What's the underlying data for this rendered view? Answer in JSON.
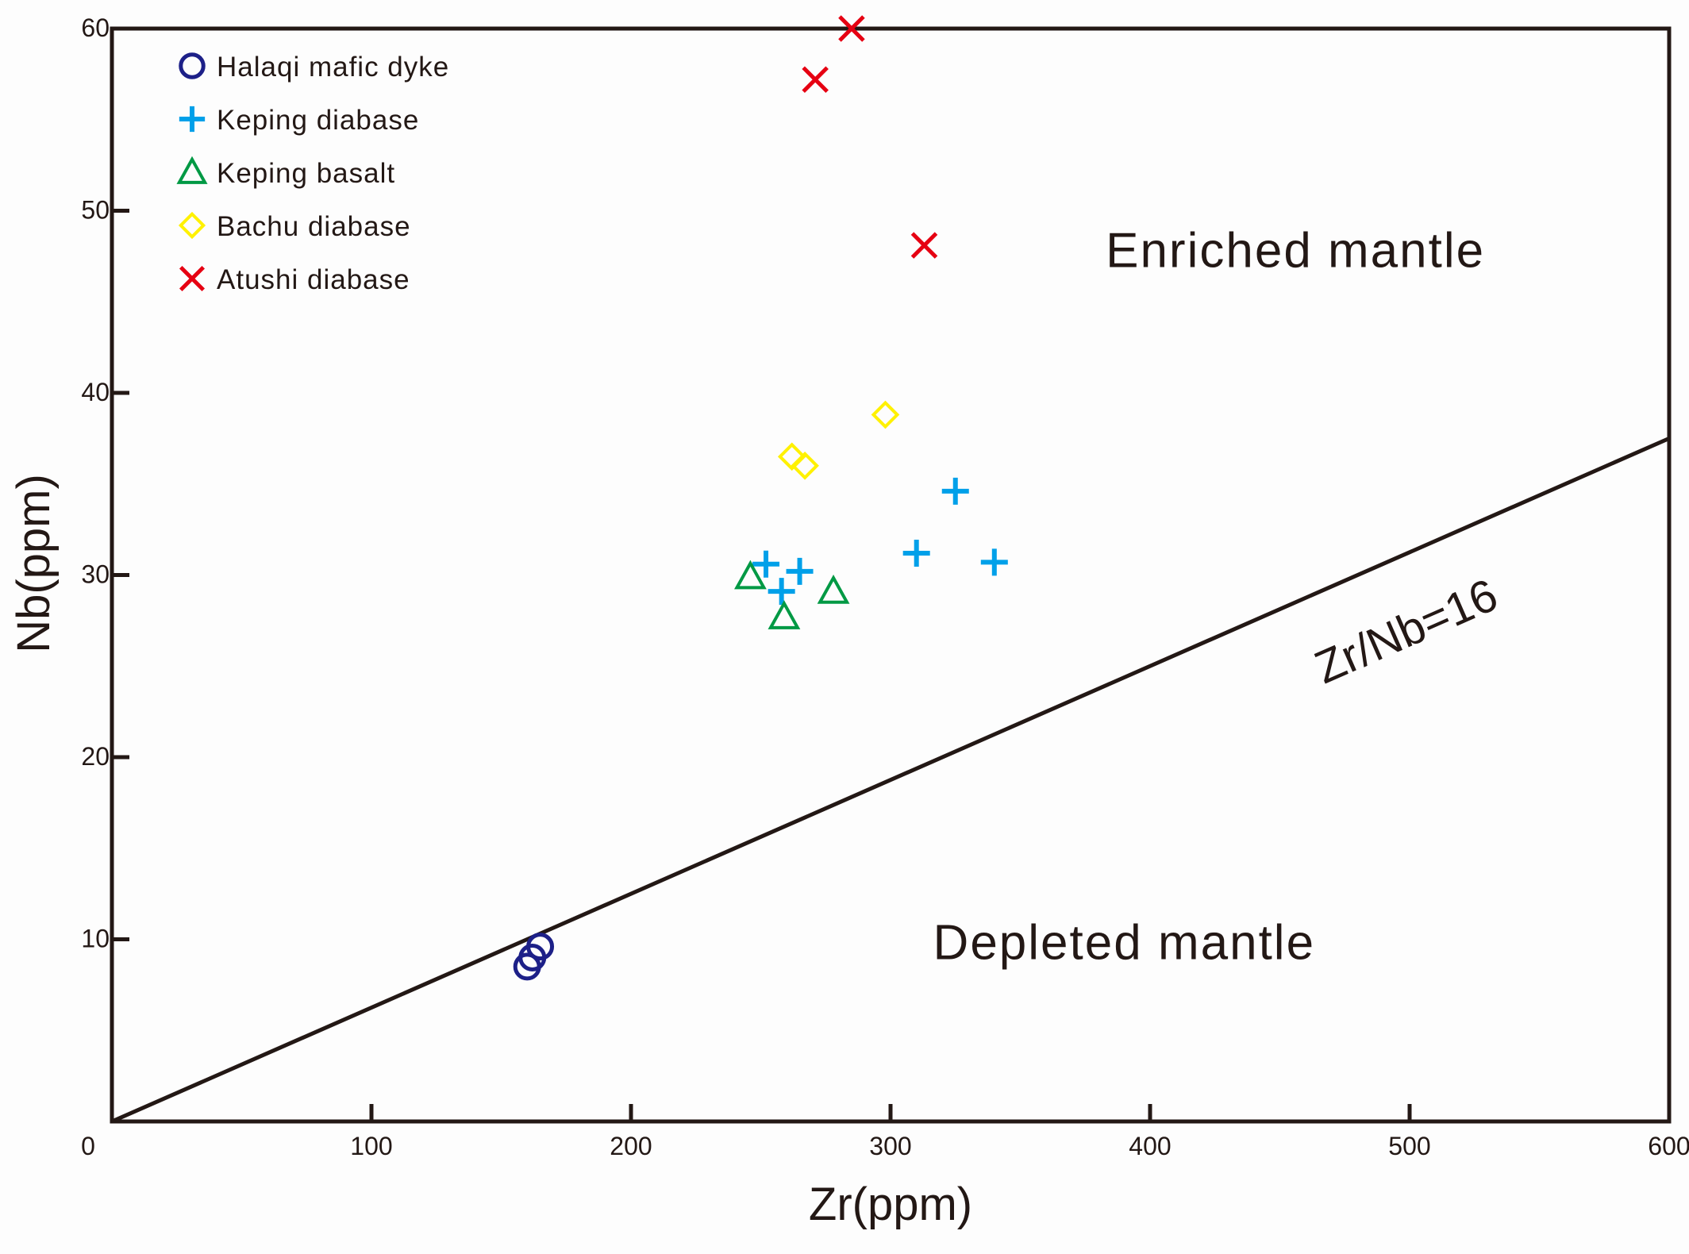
{
  "chart_data": {
    "type": "scatter",
    "title": "",
    "xlabel": "Zr(ppm)",
    "ylabel": "Nb(ppm)",
    "xlim": [
      0,
      600
    ],
    "ylim": [
      0,
      60
    ],
    "grid": false,
    "x_ticks": [
      {
        "value": 0,
        "label": "0"
      },
      {
        "value": 100,
        "label": "100"
      },
      {
        "value": 200,
        "label": "200"
      },
      {
        "value": 300,
        "label": "300"
      },
      {
        "value": 400,
        "label": "400"
      },
      {
        "value": 500,
        "label": "500"
      },
      {
        "value": 600,
        "label": "600"
      }
    ],
    "y_ticks": [
      {
        "value": 10,
        "label": "10"
      },
      {
        "value": 20,
        "label": "20"
      },
      {
        "value": 30,
        "label": "30"
      },
      {
        "value": 40,
        "label": "40"
      },
      {
        "value": 50,
        "label": "50"
      },
      {
        "value": 60,
        "label": "60"
      }
    ],
    "legend_position": "top-left",
    "series": [
      {
        "name": "Halaqi mafic dyke",
        "marker": "circle",
        "color": "#1d2088",
        "points": [
          [
            160,
            8.5
          ],
          [
            165,
            9.6
          ],
          [
            162,
            9.0
          ]
        ]
      },
      {
        "name": "Keping diabase",
        "marker": "plus",
        "color": "#00a0e9",
        "points": [
          [
            252,
            30.6
          ],
          [
            258,
            29.1
          ],
          [
            265,
            30.2
          ],
          [
            310,
            31.2
          ],
          [
            325,
            34.6
          ],
          [
            340,
            30.7
          ]
        ]
      },
      {
        "name": "Keping basalt",
        "marker": "triangle",
        "color": "#009944",
        "points": [
          [
            246,
            29.9
          ],
          [
            259,
            27.7
          ],
          [
            278,
            29.1
          ]
        ]
      },
      {
        "name": "Bachu diabase",
        "marker": "diamond",
        "color": "#fff100",
        "points": [
          [
            262,
            36.5
          ],
          [
            267,
            36.0
          ],
          [
            298,
            38.8
          ]
        ]
      },
      {
        "name": "Atushi diabase",
        "marker": "cross",
        "color": "#e60012",
        "points": [
          [
            271,
            57.2
          ],
          [
            285,
            60.0
          ],
          [
            313,
            48.1
          ]
        ]
      }
    ],
    "reference_line": {
      "label": "Zr/Nb=16",
      "ratio": 16,
      "from_x": 0,
      "to_x": 600
    },
    "regions": [
      {
        "label": "Enriched mantle",
        "at": [
          456,
          46.9
        ]
      },
      {
        "label": "Depleted mantle",
        "at": [
          390,
          8.9
        ]
      }
    ]
  }
}
